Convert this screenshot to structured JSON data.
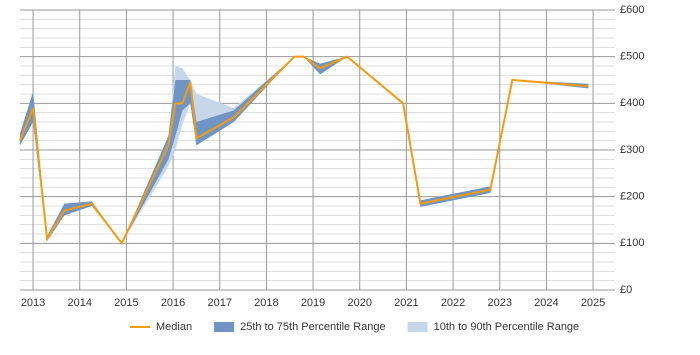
{
  "chart_data": {
    "type": "range-line",
    "x": [
      2012.72,
      2013.0,
      2013.3,
      2013.67,
      2014.26,
      2014.9,
      2015.9,
      2016.05,
      2016.2,
      2016.37,
      2016.5,
      2017.3,
      2018.6,
      2018.8,
      2019.15,
      2019.73,
      2020.93,
      2021.3,
      2022.8,
      2023.27,
      2024.9
    ],
    "series": [
      {
        "name": "Median",
        "color": "#f39c12",
        "values": [
          320,
          390,
          110,
          170,
          185,
          100,
          310,
          400,
          400,
          445,
          325,
          370,
          500,
          500,
          475,
          500,
          400,
          185,
          215,
          450,
          437
        ]
      },
      {
        "name": "25th to 75th Percentile Range",
        "color": "#7094c4",
        "low": [
          310,
          360,
          105,
          160,
          180,
          100,
          280,
          330,
          385,
          400,
          310,
          360,
          500,
          500,
          462,
          500,
          400,
          178,
          208,
          450,
          432
        ],
        "high": [
          335,
          425,
          115,
          185,
          190,
          100,
          330,
          450,
          450,
          450,
          360,
          385,
          500,
          500,
          485,
          500,
          400,
          192,
          222,
          450,
          442
        ]
      },
      {
        "name": "10th to 90th Percentile Range",
        "color": "#c6d7ea",
        "low": [
          310,
          360,
          105,
          160,
          180,
          100,
          265,
          300,
          355,
          400,
          310,
          360,
          500,
          500,
          462,
          500,
          400,
          178,
          208,
          450,
          432
        ],
        "high": [
          335,
          425,
          115,
          185,
          190,
          100,
          330,
          480,
          475,
          450,
          420,
          390,
          500,
          500,
          485,
          500,
          400,
          192,
          222,
          450,
          442
        ]
      }
    ],
    "xlim": [
      2012.72,
      2025.47
    ],
    "xticks": [
      2013,
      2014,
      2015,
      2016,
      2017,
      2018,
      2019,
      2020,
      2021,
      2022,
      2023,
      2024,
      2025
    ],
    "ylim": [
      0,
      600
    ],
    "yticks": [
      {
        "value": 0,
        "label": "£0"
      },
      {
        "value": 100,
        "label": "£100"
      },
      {
        "value": 200,
        "label": "£200"
      },
      {
        "value": 300,
        "label": "£300"
      },
      {
        "value": 400,
        "label": "£400"
      },
      {
        "value": 500,
        "label": "£500"
      },
      {
        "value": 600,
        "label": "£600"
      }
    ],
    "grid": true,
    "legend": "bottom"
  }
}
